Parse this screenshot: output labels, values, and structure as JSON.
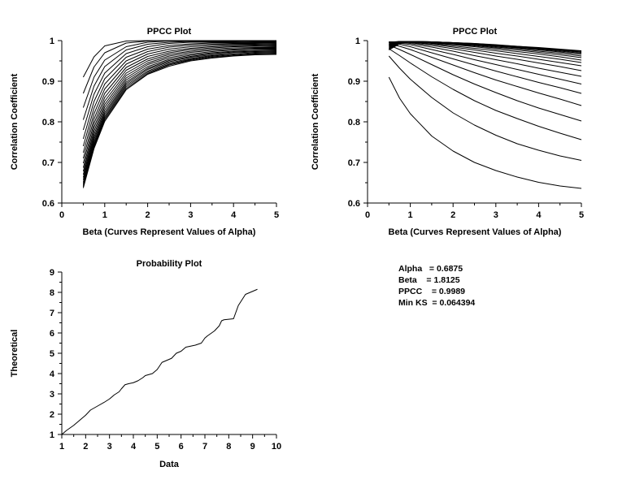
{
  "chart_data": [
    {
      "id": "ppcc-alpha",
      "type": "line",
      "title": "PPCC Plot",
      "xlabel": "Beta (Curves Represent Values of Alpha)",
      "ylabel": "Correlation Coefficient",
      "xlim": [
        0,
        5
      ],
      "ylim": [
        0.6,
        1
      ],
      "xticks": [
        "0",
        "1",
        "2",
        "3",
        "4",
        "5"
      ],
      "yticks": [
        "0.6",
        "0.7",
        "0.8",
        "0.9",
        "1"
      ],
      "x": [
        0.5,
        0.75,
        1,
        1.5,
        2,
        2.5,
        3,
        3.5,
        4,
        4.5,
        5
      ],
      "series": [
        {
          "values": [
            0.91,
            0.96,
            0.987,
            0.999,
            1.0,
            1.0,
            1.0,
            1.0,
            1.0,
            1.0,
            1.0
          ]
        },
        {
          "values": [
            0.87,
            0.935,
            0.97,
            0.994,
            0.999,
            1.0,
            1.0,
            1.0,
            1.0,
            0.999,
            0.999
          ]
        },
        {
          "values": [
            0.835,
            0.91,
            0.952,
            0.985,
            0.996,
            0.999,
            0.999,
            0.999,
            0.999,
            0.998,
            0.998
          ]
        },
        {
          "values": [
            0.805,
            0.888,
            0.936,
            0.977,
            0.991,
            0.996,
            0.998,
            0.998,
            0.998,
            0.997,
            0.996
          ]
        },
        {
          "values": [
            0.78,
            0.868,
            0.92,
            0.968,
            0.985,
            0.993,
            0.996,
            0.996,
            0.996,
            0.995,
            0.995
          ]
        },
        {
          "values": [
            0.758,
            0.85,
            0.906,
            0.959,
            0.979,
            0.988,
            0.992,
            0.994,
            0.994,
            0.994,
            0.993
          ]
        },
        {
          "values": [
            0.74,
            0.834,
            0.893,
            0.95,
            0.973,
            0.984,
            0.989,
            0.991,
            0.992,
            0.992,
            0.991
          ]
        },
        {
          "values": [
            0.724,
            0.82,
            0.881,
            0.942,
            0.967,
            0.979,
            0.985,
            0.988,
            0.99,
            0.99,
            0.989
          ]
        },
        {
          "values": [
            0.71,
            0.807,
            0.87,
            0.934,
            0.961,
            0.974,
            0.981,
            0.985,
            0.987,
            0.988,
            0.987
          ]
        },
        {
          "values": [
            0.698,
            0.796,
            0.86,
            0.927,
            0.955,
            0.97,
            0.978,
            0.982,
            0.985,
            0.986,
            0.985
          ]
        },
        {
          "values": [
            0.687,
            0.786,
            0.851,
            0.92,
            0.95,
            0.966,
            0.974,
            0.979,
            0.982,
            0.983,
            0.983
          ]
        },
        {
          "values": [
            0.678,
            0.777,
            0.843,
            0.914,
            0.945,
            0.962,
            0.971,
            0.976,
            0.979,
            0.981,
            0.981
          ]
        },
        {
          "values": [
            0.67,
            0.769,
            0.836,
            0.908,
            0.941,
            0.958,
            0.967,
            0.973,
            0.977,
            0.979,
            0.979
          ]
        },
        {
          "values": [
            0.663,
            0.762,
            0.829,
            0.903,
            0.936,
            0.954,
            0.964,
            0.97,
            0.974,
            0.976,
            0.977
          ]
        },
        {
          "values": [
            0.657,
            0.756,
            0.823,
            0.898,
            0.932,
            0.951,
            0.961,
            0.968,
            0.972,
            0.974,
            0.975
          ]
        },
        {
          "values": [
            0.651,
            0.75,
            0.818,
            0.894,
            0.929,
            0.948,
            0.959,
            0.965,
            0.97,
            0.972,
            0.973
          ]
        },
        {
          "values": [
            0.647,
            0.745,
            0.813,
            0.89,
            0.925,
            0.945,
            0.956,
            0.963,
            0.967,
            0.97,
            0.971
          ]
        },
        {
          "values": [
            0.643,
            0.741,
            0.809,
            0.886,
            0.922,
            0.942,
            0.954,
            0.961,
            0.965,
            0.968,
            0.969
          ]
        },
        {
          "values": [
            0.64,
            0.737,
            0.805,
            0.882,
            0.919,
            0.94,
            0.952,
            0.959,
            0.963,
            0.966,
            0.967
          ]
        },
        {
          "values": [
            0.637,
            0.734,
            0.801,
            0.879,
            0.917,
            0.937,
            0.95,
            0.957,
            0.962,
            0.965,
            0.966
          ]
        }
      ]
    },
    {
      "id": "ppcc-beta",
      "type": "line",
      "title": "PPCC Plot",
      "xlabel": "Beta (Curves Represent Values of Alpha)",
      "ylabel": "Correlation Coefficient",
      "xlim": [
        0,
        5
      ],
      "ylim": [
        0.6,
        1
      ],
      "xticks": [
        "0",
        "1",
        "2",
        "3",
        "4",
        "5"
      ],
      "yticks": [
        "0.6",
        "0.7",
        "0.8",
        "0.9",
        "1"
      ],
      "x": [
        0.5,
        0.75,
        1,
        1.5,
        2,
        2.5,
        3,
        3.5,
        4,
        4.5,
        5
      ],
      "series": [
        {
          "values": [
            0.91,
            0.858,
            0.82,
            0.765,
            0.728,
            0.7,
            0.68,
            0.664,
            0.651,
            0.642,
            0.636
          ]
        },
        {
          "values": [
            0.962,
            0.932,
            0.905,
            0.86,
            0.822,
            0.792,
            0.767,
            0.746,
            0.73,
            0.716,
            0.705
          ]
        },
        {
          "values": [
            0.98,
            0.963,
            0.945,
            0.911,
            0.88,
            0.852,
            0.828,
            0.808,
            0.789,
            0.772,
            0.756
          ]
        },
        {
          "values": [
            0.989,
            0.978,
            0.966,
            0.941,
            0.916,
            0.893,
            0.872,
            0.852,
            0.834,
            0.818,
            0.802
          ]
        },
        {
          "values": [
            0.992,
            0.986,
            0.978,
            0.959,
            0.94,
            0.921,
            0.903,
            0.887,
            0.871,
            0.856,
            0.84
          ]
        },
        {
          "values": [
            0.995,
            0.991,
            0.985,
            0.97,
            0.955,
            0.94,
            0.925,
            0.911,
            0.897,
            0.884,
            0.87
          ]
        },
        {
          "values": [
            0.996,
            0.994,
            0.99,
            0.978,
            0.966,
            0.953,
            0.941,
            0.929,
            0.917,
            0.905,
            0.893
          ]
        },
        {
          "values": [
            0.997,
            0.996,
            0.993,
            0.984,
            0.974,
            0.963,
            0.953,
            0.943,
            0.932,
            0.922,
            0.912
          ]
        },
        {
          "values": [
            0.997,
            0.997,
            0.995,
            0.988,
            0.98,
            0.971,
            0.962,
            0.954,
            0.945,
            0.936,
            0.926
          ]
        },
        {
          "values": [
            0.996,
            0.998,
            0.996,
            0.991,
            0.984,
            0.977,
            0.969,
            0.962,
            0.954,
            0.946,
            0.938
          ]
        },
        {
          "values": [
            0.994,
            0.998,
            0.997,
            0.993,
            0.987,
            0.981,
            0.975,
            0.968,
            0.961,
            0.954,
            0.946
          ]
        },
        {
          "values": [
            0.992,
            0.998,
            0.998,
            0.994,
            0.99,
            0.985,
            0.979,
            0.973,
            0.967,
            0.96,
            0.952
          ]
        },
        {
          "values": [
            0.99,
            0.998,
            0.998,
            0.995,
            0.991,
            0.987,
            0.982,
            0.977,
            0.971,
            0.965,
            0.958
          ]
        },
        {
          "values": [
            0.988,
            0.997,
            0.998,
            0.996,
            0.992,
            0.989,
            0.984,
            0.98,
            0.974,
            0.969,
            0.962
          ]
        },
        {
          "values": [
            0.986,
            0.997,
            0.998,
            0.996,
            0.993,
            0.99,
            0.986,
            0.982,
            0.977,
            0.972,
            0.966
          ]
        },
        {
          "values": [
            0.984,
            0.996,
            0.998,
            0.997,
            0.994,
            0.991,
            0.987,
            0.983,
            0.979,
            0.974,
            0.969
          ]
        },
        {
          "values": [
            0.982,
            0.995,
            0.998,
            0.997,
            0.995,
            0.992,
            0.988,
            0.984,
            0.98,
            0.976,
            0.971
          ]
        },
        {
          "values": [
            0.98,
            0.994,
            0.998,
            0.997,
            0.995,
            0.992,
            0.989,
            0.985,
            0.981,
            0.977,
            0.973
          ]
        },
        {
          "values": [
            0.978,
            0.993,
            0.998,
            0.997,
            0.995,
            0.993,
            0.989,
            0.986,
            0.982,
            0.978,
            0.974
          ]
        },
        {
          "values": [
            0.977,
            0.992,
            0.998,
            0.997,
            0.995,
            0.993,
            0.99,
            0.986,
            0.983,
            0.979,
            0.975
          ]
        }
      ]
    },
    {
      "id": "probability-plot",
      "type": "line",
      "title": "Probability Plot",
      "xlabel": "Data",
      "ylabel": "Theoretical",
      "xlim": [
        1,
        10
      ],
      "ylim": [
        1,
        9
      ],
      "xticks": [
        "1",
        "2",
        "3",
        "4",
        "5",
        "6",
        "7",
        "8",
        "9",
        "10"
      ],
      "yticks": [
        "1",
        "2",
        "3",
        "4",
        "5",
        "6",
        "7",
        "8",
        "9"
      ],
      "x": [
        1.0,
        1.2,
        1.5,
        1.8,
        2.0,
        2.2,
        2.5,
        2.8,
        3.0,
        3.2,
        3.4,
        3.5,
        3.65,
        3.8,
        4.0,
        4.2,
        4.4,
        4.5,
        4.8,
        5.0,
        5.2,
        5.4,
        5.6,
        5.8,
        6.0,
        6.2,
        6.4,
        6.6,
        6.85,
        7.0,
        7.1,
        7.4,
        7.6,
        7.7,
        7.8,
        8.2,
        8.4,
        8.7,
        9.2
      ],
      "values": [
        1.0,
        1.2,
        1.45,
        1.75,
        1.95,
        2.2,
        2.4,
        2.6,
        2.75,
        2.95,
        3.1,
        3.25,
        3.45,
        3.5,
        3.55,
        3.65,
        3.8,
        3.9,
        4.0,
        4.2,
        4.55,
        4.65,
        4.75,
        5.0,
        5.1,
        5.3,
        5.35,
        5.4,
        5.5,
        5.75,
        5.85,
        6.1,
        6.35,
        6.6,
        6.65,
        6.7,
        7.35,
        7.9,
        8.15
      ]
    }
  ],
  "annotation": {
    "lines": [
      "Alpha   = 0.6875",
      "Beta    = 1.8125",
      "PPCC    = 0.9989",
      "Min KS  = 0.064394"
    ]
  }
}
